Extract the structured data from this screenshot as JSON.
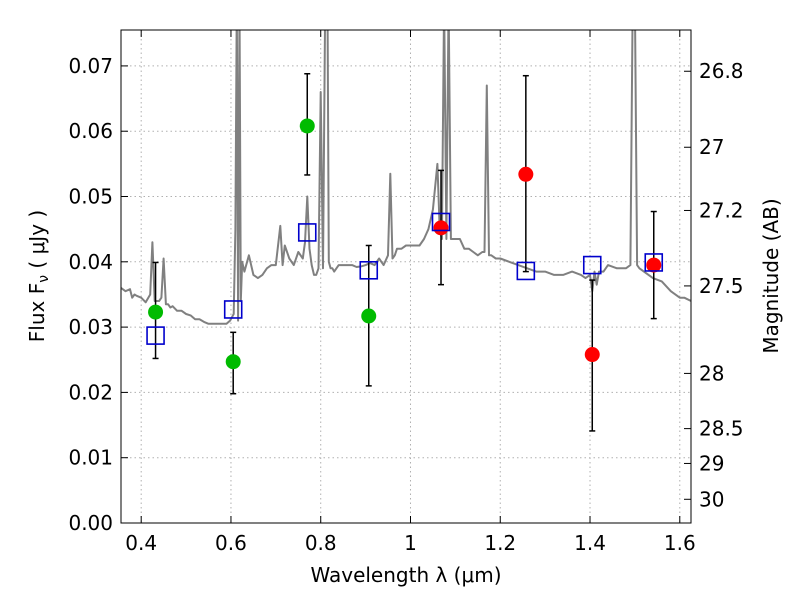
{
  "chart_data": {
    "type": "scatter",
    "xlabel": "Wavelength  λ (μm)",
    "ylabel": "Flux  F",
    "ylabel_sub": "ν",
    "ylabel_unit": "  ( μJy )",
    "ylabel_right": "Magnitude (AB)",
    "xlim": [
      0.355,
      1.625
    ],
    "ylim": [
      0.0,
      0.0755
    ],
    "grid": true,
    "x_ticks": [
      {
        "value": 0.4,
        "label": "0.4"
      },
      {
        "value": 0.6,
        "label": "0.6"
      },
      {
        "value": 0.8,
        "label": "0.8"
      },
      {
        "value": 1.0,
        "label": "1"
      },
      {
        "value": 1.2,
        "label": "1.2"
      },
      {
        "value": 1.4,
        "label": "1.4"
      },
      {
        "value": 1.6,
        "label": "1.6"
      }
    ],
    "y_ticks": [
      {
        "value": 0.0,
        "label": "0.00"
      },
      {
        "value": 0.01,
        "label": "0.01"
      },
      {
        "value": 0.02,
        "label": "0.02"
      },
      {
        "value": 0.03,
        "label": "0.03"
      },
      {
        "value": 0.04,
        "label": "0.04"
      },
      {
        "value": 0.05,
        "label": "0.05"
      },
      {
        "value": 0.06,
        "label": "0.06"
      },
      {
        "value": 0.07,
        "label": "0.07"
      }
    ],
    "right_ticks": [
      {
        "mag": 26.8,
        "label": "26.8"
      },
      {
        "mag": 27.0,
        "label": "27"
      },
      {
        "mag": 27.2,
        "label": "27.2"
      },
      {
        "mag": 27.5,
        "label": "27.5"
      },
      {
        "mag": 28.0,
        "label": "28"
      },
      {
        "mag": 28.5,
        "label": "28.5"
      },
      {
        "mag": 29.0,
        "label": "29"
      },
      {
        "mag": 30.0,
        "label": "30"
      }
    ],
    "colors": {
      "model": "#808080",
      "green": "#00bb00",
      "red": "#ff0000",
      "box": "#0000cc",
      "errorbar": "#000000",
      "grid": "#b0b0b0"
    },
    "model_sed": {
      "x": [
        0.355,
        0.365,
        0.375,
        0.38,
        0.385,
        0.39,
        0.4,
        0.41,
        0.42,
        0.425,
        0.43,
        0.44,
        0.445,
        0.45,
        0.455,
        0.46,
        0.465,
        0.47,
        0.48,
        0.49,
        0.5,
        0.51,
        0.52,
        0.53,
        0.54,
        0.55,
        0.56,
        0.57,
        0.58,
        0.59,
        0.598,
        0.602,
        0.606,
        0.61,
        0.613,
        0.616,
        0.619,
        0.622,
        0.625,
        0.63,
        0.64,
        0.65,
        0.66,
        0.67,
        0.68,
        0.69,
        0.7,
        0.71,
        0.715,
        0.72,
        0.73,
        0.74,
        0.75,
        0.76,
        0.765,
        0.77,
        0.775,
        0.78,
        0.785,
        0.79,
        0.795,
        0.8,
        0.805,
        0.81,
        0.815,
        0.818,
        0.822,
        0.826,
        0.83,
        0.84,
        0.85,
        0.86,
        0.87,
        0.88,
        0.89,
        0.9,
        0.91,
        0.92,
        0.93,
        0.94,
        0.95,
        0.955,
        0.96,
        0.965,
        0.97,
        0.98,
        0.99,
        1.0,
        1.01,
        1.02,
        1.03,
        1.04,
        1.05,
        1.06,
        1.065,
        1.07,
        1.075,
        1.08,
        1.085,
        1.09,
        1.1,
        1.11,
        1.12,
        1.13,
        1.14,
        1.15,
        1.16,
        1.165,
        1.17,
        1.175,
        1.18,
        1.19,
        1.2,
        1.22,
        1.24,
        1.26,
        1.28,
        1.3,
        1.32,
        1.34,
        1.36,
        1.38,
        1.39,
        1.4,
        1.405,
        1.41,
        1.415,
        1.42,
        1.43,
        1.44,
        1.46,
        1.48,
        1.49,
        1.495,
        1.5,
        1.505,
        1.51,
        1.52,
        1.54,
        1.56,
        1.58,
        1.6,
        1.61,
        1.625
      ],
      "y": [
        0.036,
        0.0355,
        0.0358,
        0.0345,
        0.035,
        0.0348,
        0.0345,
        0.0338,
        0.035,
        0.043,
        0.034,
        0.034,
        0.0345,
        0.0405,
        0.0335,
        0.0335,
        0.033,
        0.0332,
        0.0325,
        0.0325,
        0.032,
        0.0318,
        0.0312,
        0.0312,
        0.0308,
        0.0305,
        0.0305,
        0.0305,
        0.0305,
        0.0305,
        0.031,
        0.0315,
        0.032,
        0.045,
        0.08,
        0.031,
        0.08,
        0.034,
        0.04,
        0.0385,
        0.041,
        0.038,
        0.0375,
        0.038,
        0.039,
        0.0395,
        0.0395,
        0.0455,
        0.0395,
        0.0425,
        0.0405,
        0.0395,
        0.0415,
        0.0405,
        0.043,
        0.05,
        0.042,
        0.0395,
        0.038,
        0.038,
        0.039,
        0.066,
        0.039,
        0.08,
        0.08,
        0.04,
        0.039,
        0.039,
        0.0385,
        0.0395,
        0.0395,
        0.0395,
        0.0395,
        0.0392,
        0.0393,
        0.0395,
        0.0398,
        0.0395,
        0.0405,
        0.0395,
        0.041,
        0.0535,
        0.0405,
        0.041,
        0.042,
        0.042,
        0.0425,
        0.0425,
        0.0425,
        0.0425,
        0.0435,
        0.045,
        0.048,
        0.055,
        0.045,
        0.0435,
        0.08,
        0.0435,
        0.08,
        0.0435,
        0.0435,
        0.0435,
        0.042,
        0.042,
        0.0415,
        0.041,
        0.0415,
        0.0415,
        0.067,
        0.041,
        0.041,
        0.0405,
        0.0405,
        0.04,
        0.0395,
        0.039,
        0.0385,
        0.0385,
        0.038,
        0.038,
        0.0385,
        0.038,
        0.0375,
        0.038,
        0.0355,
        0.0385,
        0.0365,
        0.0385,
        0.0385,
        0.0395,
        0.039,
        0.039,
        0.0395,
        0.08,
        0.08,
        0.0395,
        0.039,
        0.0385,
        0.0375,
        0.037,
        0.0355,
        0.0345,
        0.0345,
        0.034
      ]
    },
    "series": [
      {
        "marker": "circle",
        "color": "green",
        "points": [
          {
            "x": 0.432,
            "y": 0.0323,
            "err_lo": null,
            "err_hi": null
          },
          {
            "x": 0.605,
            "y": 0.0247,
            "err_lo": null,
            "err_hi": null
          },
          {
            "x": 0.77,
            "y": 0.0608,
            "err_lo": null,
            "err_hi": null
          },
          {
            "x": 0.907,
            "y": 0.0317,
            "err_lo": null,
            "err_hi": null
          }
        ]
      },
      {
        "marker": "circle",
        "color": "red",
        "points": [
          {
            "x": 1.068,
            "y": 0.0452,
            "err_lo": null,
            "err_hi": null
          },
          {
            "x": 1.257,
            "y": 0.0534,
            "err_lo": null,
            "err_hi": null
          },
          {
            "x": 1.405,
            "y": 0.0258,
            "err_lo": null,
            "err_hi": null
          },
          {
            "x": 1.542,
            "y": 0.0395,
            "err_lo": null,
            "err_hi": null
          }
        ]
      },
      {
        "marker": "square",
        "color": "box",
        "points": [
          {
            "x": 0.432,
            "y": 0.0287,
            "err_lo": 0.0252,
            "err_hi": 0.0399
          },
          {
            "x": 0.605,
            "y": 0.0327,
            "err_lo": 0.0198,
            "err_hi": 0.0292
          },
          {
            "x": 0.77,
            "y": 0.0445,
            "err_lo": 0.0533,
            "err_hi": 0.0688
          },
          {
            "x": 0.907,
            "y": 0.0387,
            "err_lo": 0.021,
            "err_hi": 0.0425
          },
          {
            "x": 1.068,
            "y": 0.0461,
            "err_lo": 0.0365,
            "err_hi": 0.054
          },
          {
            "x": 1.257,
            "y": 0.0386,
            "err_lo": 0.0385,
            "err_hi": 0.0685
          },
          {
            "x": 1.405,
            "y": 0.0395,
            "err_lo": 0.0141,
            "err_hi": 0.0372
          },
          {
            "x": 1.542,
            "y": 0.0399,
            "err_lo": 0.0313,
            "err_hi": 0.0477
          }
        ]
      }
    ]
  }
}
